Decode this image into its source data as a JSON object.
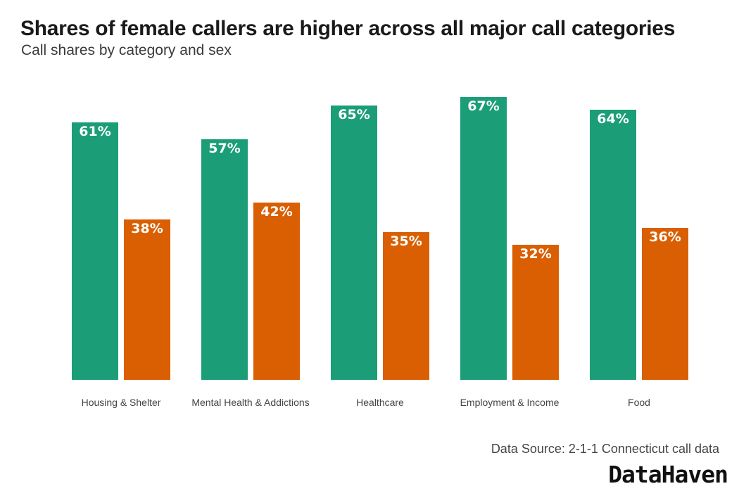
{
  "title": "Shares of female callers are higher across all major call categories",
  "subtitle": "Call shares by category and sex",
  "source": "Data Source: 2-1-1 Connecticut call data",
  "logo": "DataHaven",
  "colors": {
    "female": "#1b9e77",
    "male": "#d95f02"
  },
  "chart_data": {
    "type": "bar",
    "title": "Shares of female callers are higher across all major call categories",
    "subtitle": "Call shares by category and sex",
    "categories": [
      "Housing & Shelter",
      "Mental Health & Addictions",
      "Healthcare",
      "Employment & Income",
      "Food"
    ],
    "series": [
      {
        "values": [
          61,
          57,
          65,
          67,
          64
        ],
        "labels": [
          "61%",
          "57%",
          "65%",
          "67%",
          "64%"
        ],
        "color": "#1b9e77"
      },
      {
        "values": [
          38,
          42,
          35,
          32,
          36
        ],
        "labels": [
          "38%",
          "42%",
          "35%",
          "32%",
          "36%"
        ],
        "color": "#d95f02"
      }
    ],
    "ylim": [
      0,
      70
    ],
    "grid": false,
    "legend": "none"
  }
}
